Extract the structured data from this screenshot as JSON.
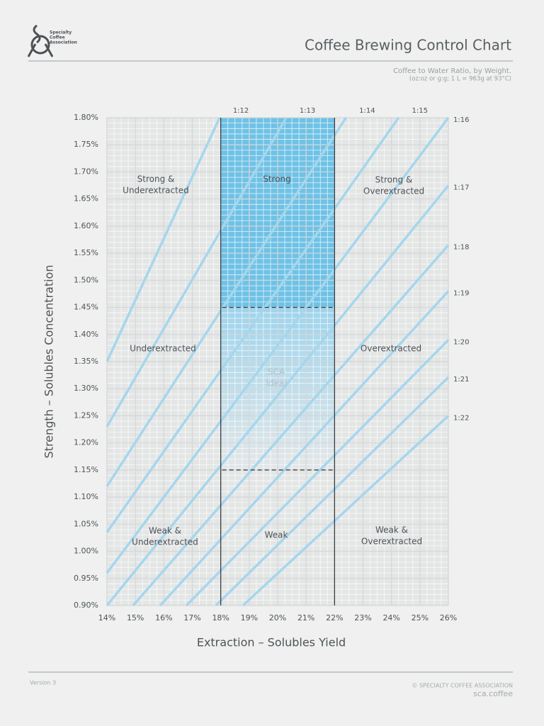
{
  "header": {
    "org": [
      "Specialty",
      "Coffee",
      "Association"
    ],
    "title": "Coffee Brewing Control Chart",
    "subtitle": "Coffee to Water Ratio, by Weight.",
    "note": "(oz:oz or g:g; 1 L = 963g at 93°C)"
  },
  "chart_data": {
    "type": "line",
    "x_label": "Extraction – Solubles Yield",
    "y_label": "Strength – Solubles Concentration",
    "xlim": [
      14,
      26
    ],
    "ylim": [
      0.9,
      1.8
    ],
    "xticks": [
      {
        "value": 14,
        "label": "14%"
      },
      {
        "value": 15,
        "label": "15%"
      },
      {
        "value": 16,
        "label": "16%"
      },
      {
        "value": 17,
        "label": "17%"
      },
      {
        "value": 18,
        "label": "18%"
      },
      {
        "value": 19,
        "label": "19%"
      },
      {
        "value": 20,
        "label": "20%"
      },
      {
        "value": 21,
        "label": "21%"
      },
      {
        "value": 22,
        "label": "22%"
      },
      {
        "value": 23,
        "label": "23%"
      },
      {
        "value": 24,
        "label": "24%"
      },
      {
        "value": 25,
        "label": "25%"
      },
      {
        "value": 26,
        "label": "26%"
      }
    ],
    "yticks": [
      {
        "value": 0.9,
        "label": "0.90%"
      },
      {
        "value": 0.95,
        "label": "0.95%"
      },
      {
        "value": 1.0,
        "label": "1.00%"
      },
      {
        "value": 1.05,
        "label": "1.05%"
      },
      {
        "value": 1.1,
        "label": "1.10%"
      },
      {
        "value": 1.15,
        "label": "1.15%"
      },
      {
        "value": 1.2,
        "label": "1.20%"
      },
      {
        "value": 1.25,
        "label": "1.25%"
      },
      {
        "value": 1.3,
        "label": "1.30%"
      },
      {
        "value": 1.35,
        "label": "1.35%"
      },
      {
        "value": 1.4,
        "label": "1.40%"
      },
      {
        "value": 1.45,
        "label": "1.45%"
      },
      {
        "value": 1.5,
        "label": "1.50%"
      },
      {
        "value": 1.55,
        "label": "1.55%"
      },
      {
        "value": 1.6,
        "label": "1.60%"
      },
      {
        "value": 1.65,
        "label": "1.65%"
      },
      {
        "value": 1.7,
        "label": "1.70%"
      },
      {
        "value": 1.75,
        "label": "1.75%"
      },
      {
        "value": 1.8,
        "label": "1.80%"
      }
    ],
    "minor_grid": {
      "x": 0.25,
      "y": 0.01
    },
    "grid": true,
    "ideal": {
      "extraction": [
        18,
        22
      ],
      "strength": [
        1.15,
        1.45
      ]
    },
    "series": [
      {
        "name": "1:12",
        "color": "#a6d6ec",
        "x": [
          14,
          17.96
        ],
        "values": [
          1.35,
          1.8
        ]
      },
      {
        "name": "1:13",
        "color": "#a6d6ec",
        "x": [
          14,
          20.3
        ],
        "values": [
          1.23,
          1.8
        ]
      },
      {
        "name": "1:14",
        "color": "#a6d6ec",
        "x": [
          14,
          22.4
        ],
        "values": [
          1.12,
          1.8
        ]
      },
      {
        "name": "1:15",
        "color": "#a6d6ec",
        "x": [
          14,
          24.25
        ],
        "values": [
          1.035,
          1.8
        ]
      },
      {
        "name": "1:16",
        "color": "#a6d6ec",
        "x": [
          14,
          26
        ],
        "values": [
          0.96,
          1.8
        ]
      },
      {
        "name": "1:17",
        "color": "#a6d6ec",
        "x": [
          14,
          26
        ],
        "values": [
          0.9,
          1.675
        ]
      },
      {
        "name": "1:18",
        "color": "#a6d6ec",
        "x": [
          14.92,
          26
        ],
        "values": [
          0.9,
          1.565
        ]
      },
      {
        "name": "1:19",
        "color": "#a6d6ec",
        "x": [
          15.87,
          26
        ],
        "values": [
          0.9,
          1.48
        ]
      },
      {
        "name": "1:20",
        "color": "#a6d6ec",
        "x": [
          16.79,
          26
        ],
        "values": [
          0.9,
          1.39
        ]
      },
      {
        "name": "1:21",
        "color": "#a6d6ec",
        "x": [
          17.83,
          26
        ],
        "values": [
          0.9,
          1.321
        ]
      },
      {
        "name": "1:22",
        "color": "#a6d6ec",
        "x": [
          18.78,
          26
        ],
        "values": [
          0.9,
          1.25
        ]
      }
    ],
    "zones": [
      [
        "Strong &",
        "Underextracted"
      ],
      [
        "Strong"
      ],
      [
        "Strong &",
        "Overextracted"
      ],
      [
        "Underextracted"
      ],
      [
        "SCA",
        "Ideal"
      ],
      [
        "Overextracted"
      ],
      [
        "Weak &",
        "Underextracted"
      ],
      [
        "Weak"
      ],
      [
        "Weak &",
        "Overextracted"
      ]
    ]
  },
  "footer": {
    "version": "Version 3",
    "copyright": "© SPECIALTY COFFEE ASSOCIATION",
    "site": "sca.coffee"
  }
}
